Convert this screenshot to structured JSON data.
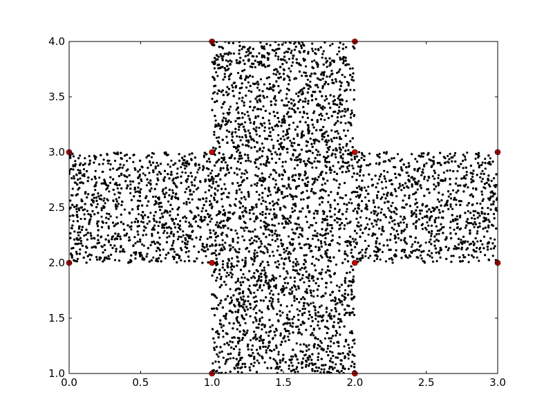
{
  "chart_data": {
    "type": "scatter",
    "title": "",
    "xlabel": "",
    "ylabel": "",
    "xlim": [
      0.0,
      3.0
    ],
    "ylim": [
      1.0,
      4.0
    ],
    "xticks": [
      "0.0",
      "0.5",
      "1.0",
      "1.5",
      "2.0",
      "2.5",
      "3.0"
    ],
    "yticks": [
      "1.0",
      "1.5",
      "2.0",
      "2.5",
      "3.0",
      "3.5",
      "4.0"
    ],
    "grid": false,
    "legend": "none",
    "point_cloud": {
      "color": "#000000",
      "region": "cross",
      "vertical_bar": {
        "x": [
          1.0,
          2.0
        ],
        "y": [
          1.0,
          4.0
        ]
      },
      "horizontal_bar": {
        "x": [
          0.0,
          3.0
        ],
        "y": [
          2.0,
          3.0
        ]
      }
    },
    "vertices": {
      "color": "#cc0000",
      "points": [
        [
          1.0,
          4.0
        ],
        [
          2.0,
          4.0
        ],
        [
          0.0,
          3.0
        ],
        [
          1.0,
          3.0
        ],
        [
          2.0,
          3.0
        ],
        [
          3.0,
          3.0
        ],
        [
          0.0,
          2.0
        ],
        [
          1.0,
          2.0
        ],
        [
          2.0,
          2.0
        ],
        [
          3.0,
          2.0
        ],
        [
          1.0,
          1.0
        ],
        [
          2.0,
          1.0
        ]
      ]
    }
  }
}
